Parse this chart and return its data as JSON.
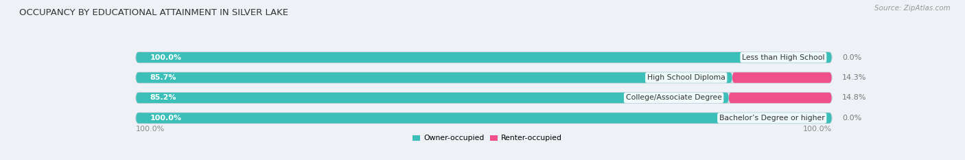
{
  "title": "OCCUPANCY BY EDUCATIONAL ATTAINMENT IN SILVER LAKE",
  "source": "Source: ZipAtlas.com",
  "categories": [
    "Less than High School",
    "High School Diploma",
    "College/Associate Degree",
    "Bachelor’s Degree or higher"
  ],
  "owner_values": [
    100.0,
    85.7,
    85.2,
    100.0
  ],
  "renter_values": [
    0.0,
    14.3,
    14.8,
    0.0
  ],
  "owner_color_dark": "#3bbfb8",
  "owner_color_light": "#7dd6d0",
  "renter_color_dark": "#f0508a",
  "renter_color_light": "#f9a0c0",
  "background_color": "#eef1f5",
  "bar_bg_color": "#dde2ea",
  "bar_bg_edge": "#cdd4de",
  "title_fontsize": 9.5,
  "source_fontsize": 7.5,
  "label_fontsize": 7.8,
  "value_fontsize": 8,
  "tick_fontsize": 8,
  "bar_height": 0.52,
  "total_width": 100
}
